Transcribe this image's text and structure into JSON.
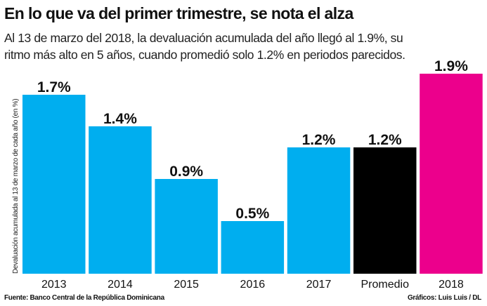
{
  "chart_data": {
    "type": "bar",
    "title": "En lo que va del primer trimestre, se nota el alza",
    "subtitle": "Al 13 de marzo del 2018, la devaluación acumulada del año llegó al 1.9%, su ritmo más alto en 5 años, cuando promedió solo 1.2% en periodos parecidos.",
    "ylabel": "Devaluación acumulada al 13 de marzo de cada año (en %)",
    "xlabel": "",
    "categories": [
      "2013",
      "2014",
      "2015",
      "2016",
      "2017",
      "Promedio",
      "2018"
    ],
    "values": [
      1.7,
      1.4,
      0.9,
      0.5,
      1.2,
      1.2,
      1.9
    ],
    "data_labels": [
      "1.7%",
      "1.4%",
      "0.9%",
      "0.5%",
      "1.2%",
      "1.2%",
      "1.9%"
    ],
    "colors": [
      "#00aeef",
      "#00aeef",
      "#00aeef",
      "#00aeef",
      "#00aeef",
      "#000000",
      "#ec008c"
    ],
    "ylim": [
      0,
      1.9
    ],
    "grid": false
  },
  "footer": {
    "source": "Fuente: Banco Central de la República Dominicana",
    "credit": "Gráficos: Luis Luis / DL"
  }
}
